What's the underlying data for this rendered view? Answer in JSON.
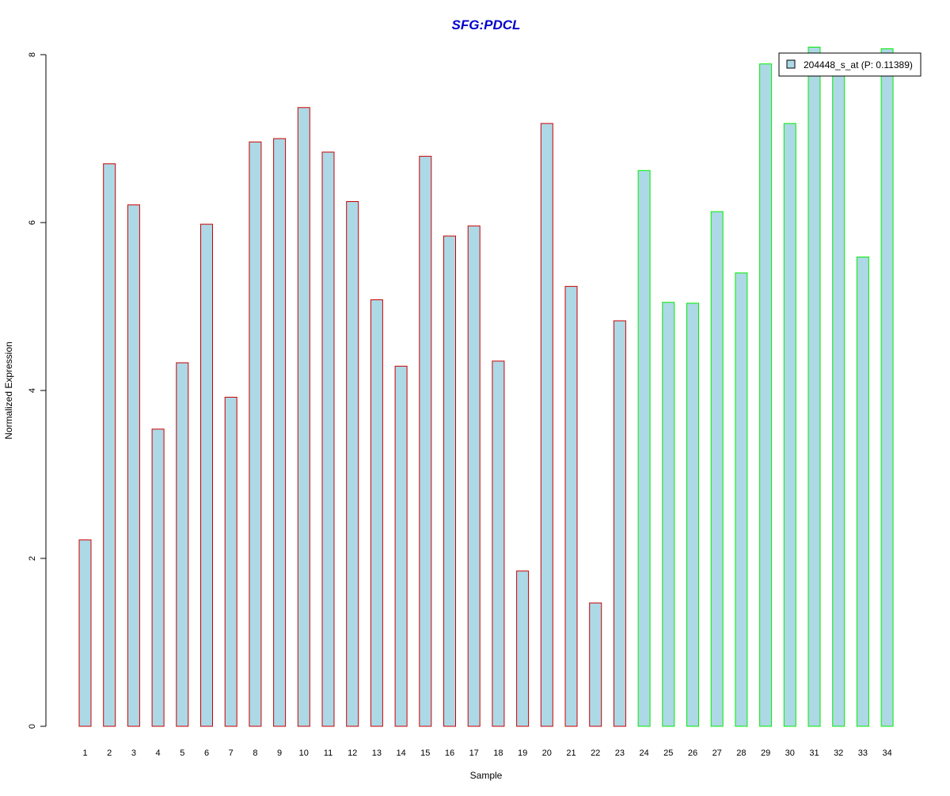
{
  "colors": {
    "title": "#0000cc",
    "bar_fill": "#add8e6",
    "group1_border": "#cc0000",
    "group2_border": "#00ee00",
    "axis": "#000000",
    "legend_border": "#000000"
  },
  "chart_data": {
    "type": "bar",
    "title": "SFG:PDCL",
    "xlabel": "Sample",
    "ylabel": "Normalized Expression",
    "ylim": [
      0,
      8
    ],
    "yticks": [
      0,
      2,
      4,
      6,
      8
    ],
    "grid": false,
    "legend_position": "top-right",
    "categories": [
      "1",
      "2",
      "3",
      "4",
      "5",
      "6",
      "7",
      "8",
      "9",
      "10",
      "11",
      "12",
      "13",
      "14",
      "15",
      "16",
      "17",
      "18",
      "19",
      "20",
      "21",
      "22",
      "23",
      "24",
      "25",
      "26",
      "27",
      "28",
      "29",
      "30",
      "31",
      "32",
      "33",
      "34"
    ],
    "series": [
      {
        "name": "204448_s_at (P: 0.11389)",
        "values": [
          2.22,
          6.7,
          6.21,
          3.54,
          4.33,
          5.98,
          3.92,
          6.96,
          7.0,
          7.37,
          6.84,
          6.25,
          5.08,
          4.29,
          6.79,
          5.84,
          5.96,
          4.35,
          1.85,
          7.18,
          5.24,
          1.47,
          4.83,
          6.62,
          5.05,
          5.04,
          6.13,
          5.4,
          7.89,
          7.18,
          8.09,
          7.84,
          5.59,
          8.07
        ]
      }
    ],
    "groups": [
      1,
      1,
      1,
      1,
      1,
      1,
      1,
      1,
      1,
      1,
      1,
      1,
      1,
      1,
      1,
      1,
      1,
      1,
      1,
      1,
      1,
      1,
      1,
      2,
      2,
      2,
      2,
      2,
      2,
      2,
      2,
      2,
      2,
      2
    ]
  }
}
